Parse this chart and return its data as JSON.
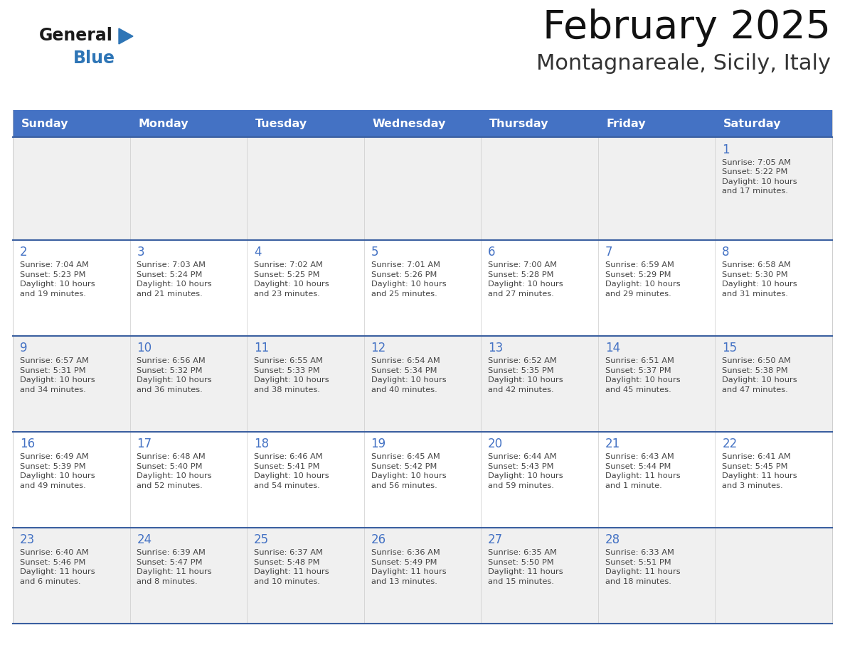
{
  "title": "February 2025",
  "subtitle": "Montagnareale, Sicily, Italy",
  "header_color": "#4472C4",
  "header_text_color": "#FFFFFF",
  "row_bg_odd": "#F0F0F0",
  "row_bg_even": "#FFFFFF",
  "day_number_color": "#4472C4",
  "text_color": "#444444",
  "border_color": "#3A5FA0",
  "days_of_week": [
    "Sunday",
    "Monday",
    "Tuesday",
    "Wednesday",
    "Thursday",
    "Friday",
    "Saturday"
  ],
  "weeks": [
    [
      {
        "day": "",
        "info": ""
      },
      {
        "day": "",
        "info": ""
      },
      {
        "day": "",
        "info": ""
      },
      {
        "day": "",
        "info": ""
      },
      {
        "day": "",
        "info": ""
      },
      {
        "day": "",
        "info": ""
      },
      {
        "day": "1",
        "info": "Sunrise: 7:05 AM\nSunset: 5:22 PM\nDaylight: 10 hours\nand 17 minutes."
      }
    ],
    [
      {
        "day": "2",
        "info": "Sunrise: 7:04 AM\nSunset: 5:23 PM\nDaylight: 10 hours\nand 19 minutes."
      },
      {
        "day": "3",
        "info": "Sunrise: 7:03 AM\nSunset: 5:24 PM\nDaylight: 10 hours\nand 21 minutes."
      },
      {
        "day": "4",
        "info": "Sunrise: 7:02 AM\nSunset: 5:25 PM\nDaylight: 10 hours\nand 23 minutes."
      },
      {
        "day": "5",
        "info": "Sunrise: 7:01 AM\nSunset: 5:26 PM\nDaylight: 10 hours\nand 25 minutes."
      },
      {
        "day": "6",
        "info": "Sunrise: 7:00 AM\nSunset: 5:28 PM\nDaylight: 10 hours\nand 27 minutes."
      },
      {
        "day": "7",
        "info": "Sunrise: 6:59 AM\nSunset: 5:29 PM\nDaylight: 10 hours\nand 29 minutes."
      },
      {
        "day": "8",
        "info": "Sunrise: 6:58 AM\nSunset: 5:30 PM\nDaylight: 10 hours\nand 31 minutes."
      }
    ],
    [
      {
        "day": "9",
        "info": "Sunrise: 6:57 AM\nSunset: 5:31 PM\nDaylight: 10 hours\nand 34 minutes."
      },
      {
        "day": "10",
        "info": "Sunrise: 6:56 AM\nSunset: 5:32 PM\nDaylight: 10 hours\nand 36 minutes."
      },
      {
        "day": "11",
        "info": "Sunrise: 6:55 AM\nSunset: 5:33 PM\nDaylight: 10 hours\nand 38 minutes."
      },
      {
        "day": "12",
        "info": "Sunrise: 6:54 AM\nSunset: 5:34 PM\nDaylight: 10 hours\nand 40 minutes."
      },
      {
        "day": "13",
        "info": "Sunrise: 6:52 AM\nSunset: 5:35 PM\nDaylight: 10 hours\nand 42 minutes."
      },
      {
        "day": "14",
        "info": "Sunrise: 6:51 AM\nSunset: 5:37 PM\nDaylight: 10 hours\nand 45 minutes."
      },
      {
        "day": "15",
        "info": "Sunrise: 6:50 AM\nSunset: 5:38 PM\nDaylight: 10 hours\nand 47 minutes."
      }
    ],
    [
      {
        "day": "16",
        "info": "Sunrise: 6:49 AM\nSunset: 5:39 PM\nDaylight: 10 hours\nand 49 minutes."
      },
      {
        "day": "17",
        "info": "Sunrise: 6:48 AM\nSunset: 5:40 PM\nDaylight: 10 hours\nand 52 minutes."
      },
      {
        "day": "18",
        "info": "Sunrise: 6:46 AM\nSunset: 5:41 PM\nDaylight: 10 hours\nand 54 minutes."
      },
      {
        "day": "19",
        "info": "Sunrise: 6:45 AM\nSunset: 5:42 PM\nDaylight: 10 hours\nand 56 minutes."
      },
      {
        "day": "20",
        "info": "Sunrise: 6:44 AM\nSunset: 5:43 PM\nDaylight: 10 hours\nand 59 minutes."
      },
      {
        "day": "21",
        "info": "Sunrise: 6:43 AM\nSunset: 5:44 PM\nDaylight: 11 hours\nand 1 minute."
      },
      {
        "day": "22",
        "info": "Sunrise: 6:41 AM\nSunset: 5:45 PM\nDaylight: 11 hours\nand 3 minutes."
      }
    ],
    [
      {
        "day": "23",
        "info": "Sunrise: 6:40 AM\nSunset: 5:46 PM\nDaylight: 11 hours\nand 6 minutes."
      },
      {
        "day": "24",
        "info": "Sunrise: 6:39 AM\nSunset: 5:47 PM\nDaylight: 11 hours\nand 8 minutes."
      },
      {
        "day": "25",
        "info": "Sunrise: 6:37 AM\nSunset: 5:48 PM\nDaylight: 11 hours\nand 10 minutes."
      },
      {
        "day": "26",
        "info": "Sunrise: 6:36 AM\nSunset: 5:49 PM\nDaylight: 11 hours\nand 13 minutes."
      },
      {
        "day": "27",
        "info": "Sunrise: 6:35 AM\nSunset: 5:50 PM\nDaylight: 11 hours\nand 15 minutes."
      },
      {
        "day": "28",
        "info": "Sunrise: 6:33 AM\nSunset: 5:51 PM\nDaylight: 11 hours\nand 18 minutes."
      },
      {
        "day": "",
        "info": ""
      }
    ]
  ],
  "logo_text_general": "General",
  "logo_text_blue": "Blue",
  "logo_color_general": "#1a1a1a",
  "logo_color_blue": "#2E75B6",
  "logo_triangle_color": "#2E75B6"
}
